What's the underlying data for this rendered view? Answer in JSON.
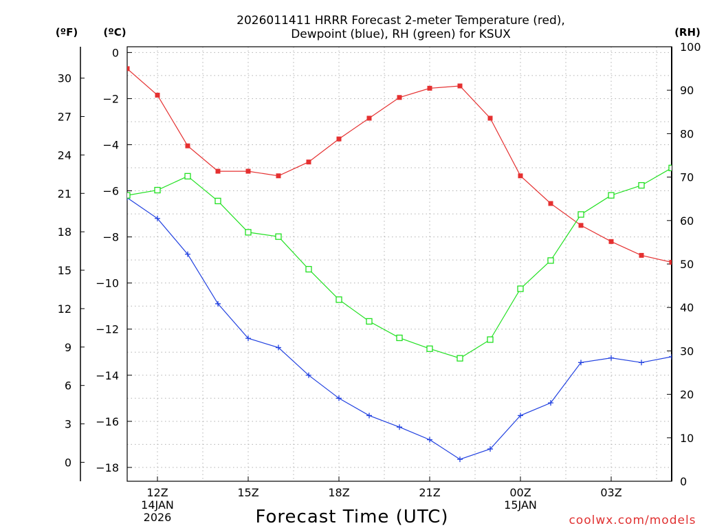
{
  "chart_data": {
    "type": "line",
    "title": {
      "line1": "2026011411 HRRR Forecast 2-meter Temperature (red),",
      "line2": "Dewpoint (blue), RH (green) for KSUX"
    },
    "units": {
      "fahrenheit": "(ºF)",
      "celsius": "(ºC)",
      "rh": "(RH)"
    },
    "xlabel": "Forecast Time (UTC)",
    "credit": "coolwx.com/models",
    "x_hours": [
      11,
      12,
      13,
      14,
      15,
      16,
      17,
      18,
      19,
      20,
      21,
      22,
      23,
      24,
      25,
      26,
      27,
      28,
      29
    ],
    "x_range": [
      11,
      29
    ],
    "x_ticks": [
      {
        "hour": 12,
        "lines": [
          "12Z",
          "14JAN",
          "2026"
        ]
      },
      {
        "hour": 15,
        "lines": [
          "15Z"
        ]
      },
      {
        "hour": 18,
        "lines": [
          "18Z"
        ]
      },
      {
        "hour": 21,
        "lines": [
          "21Z"
        ]
      },
      {
        "hour": 24,
        "lines": [
          "00Z",
          "15JAN"
        ]
      },
      {
        "hour": 27,
        "lines": [
          "03Z"
        ]
      }
    ],
    "y_celsius": {
      "range": [
        -18.6,
        0.25
      ],
      "ticks": [
        0,
        -2,
        -4,
        -6,
        -8,
        -10,
        -12,
        -14,
        -16,
        -18
      ],
      "labels": [
        "0",
        "−2",
        "−4",
        "−6",
        "−8",
        "−10",
        "−12",
        "−14",
        "−16",
        "−18"
      ]
    },
    "y_fahrenheit": {
      "ticks": [
        30,
        27,
        24,
        21,
        18,
        15,
        12,
        9,
        6,
        3,
        0
      ],
      "labels": [
        "30",
        "27",
        "24",
        "21",
        "18",
        "15",
        "12",
        "9",
        "6",
        "3",
        "0"
      ]
    },
    "y_rh": {
      "range": [
        0,
        100
      ],
      "ticks": [
        0,
        10,
        20,
        30,
        40,
        50,
        60,
        70,
        80,
        90,
        100
      ],
      "labels": [
        "0",
        "10",
        "20",
        "30",
        "40",
        "50",
        "60",
        "70",
        "80",
        "90",
        "100"
      ]
    },
    "series": [
      {
        "name": "Temperature",
        "axis": "celsius",
        "color": "#e53030",
        "marker": "filled-square",
        "values": [
          -0.7,
          -1.85,
          -4.05,
          -5.15,
          -5.15,
          -5.35,
          -4.75,
          -3.75,
          -2.85,
          -1.95,
          -1.55,
          -1.45,
          -2.85,
          -5.35,
          -6.55,
          -7.5,
          -8.2,
          -8.8,
          -9.1
        ]
      },
      {
        "name": "Dewpoint",
        "axis": "celsius",
        "color": "#2040e0",
        "marker": "plus",
        "values": [
          -6.3,
          -7.2,
          -8.75,
          -10.9,
          -12.4,
          -12.8,
          -14.0,
          -15.0,
          -15.75,
          -16.25,
          -16.8,
          -17.65,
          -17.2,
          -15.75,
          -15.2,
          -13.45,
          -13.25,
          -13.45,
          -13.2
        ]
      },
      {
        "name": "RH",
        "axis": "rh",
        "color": "#20e020",
        "marker": "open-square",
        "values": [
          65.8,
          67,
          70.2,
          64.5,
          57.3,
          56.3,
          48.8,
          41.8,
          36.8,
          33,
          30.5,
          28.3,
          32.6,
          44.3,
          50.8,
          61.4,
          65.8,
          68.1,
          72.1
        ]
      }
    ]
  }
}
